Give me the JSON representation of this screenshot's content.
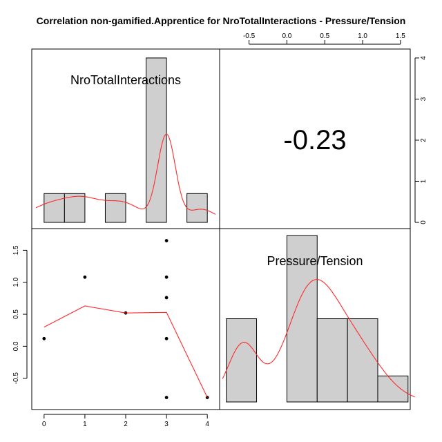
{
  "chart_data": {
    "type": "pairs",
    "title": "Correlation non-gamified.Apprentice for NroTotalInteractions - Pressure/Tension",
    "variables": [
      "NroTotalInteractions",
      "Pressure/Tension"
    ],
    "correlation": "-0.23",
    "scatter": {
      "x": [
        0,
        1,
        2,
        3,
        3,
        3,
        3,
        3,
        4
      ],
      "y": [
        0.12,
        1.08,
        0.52,
        1.65,
        1.08,
        0.76,
        0.12,
        -0.8,
        -0.8
      ],
      "smooth": [
        [
          0,
          0.3
        ],
        [
          1,
          0.63
        ],
        [
          2,
          0.52
        ],
        [
          3,
          0.53
        ],
        [
          4,
          -0.8
        ]
      ],
      "xlim": [
        -0.2,
        4.2
      ],
      "ylim": [
        -0.87,
        1.72
      ],
      "x_ticks": [
        "0",
        "1",
        "2",
        "3",
        "4"
      ],
      "y_ticks": [
        "-0.5",
        "0.0",
        "0.5",
        "1.0",
        "1.5"
      ],
      "y_tick_values": [
        -0.5,
        0.0,
        0.5,
        1.0,
        1.5
      ]
    },
    "hist_nro": {
      "bins": [
        [
          0,
          0.5
        ],
        [
          0.5,
          1
        ],
        [
          1.5,
          2
        ],
        [
          2.5,
          3
        ],
        [
          3.5,
          4
        ]
      ],
      "counts": [
        0.7,
        0.7,
        0.7,
        4,
        0.7
      ],
      "right_ticks": [
        "0",
        "1",
        "2",
        "3",
        "4"
      ],
      "right_tick_values": [
        0,
        1,
        2,
        3,
        4
      ],
      "count_lim": [
        0,
        4.15
      ]
    },
    "hist_pressure": {
      "bins": [
        [
          -0.8,
          -0.4
        ],
        [
          -0.4,
          0.0
        ],
        [
          0.0,
          0.4
        ],
        [
          0.4,
          0.8
        ],
        [
          0.8,
          1.2
        ],
        [
          1.2,
          1.6
        ]
      ],
      "heights": [
        0.8,
        0,
        1.6,
        0.8,
        0.8,
        0.25
      ],
      "xlim": [
        -0.87,
        1.72
      ],
      "top_ticks": [
        "-0.5",
        "0.0",
        "0.5",
        "1.0",
        "1.5"
      ],
      "top_tick_values": [
        -0.5,
        0.0,
        0.5,
        1.0,
        1.5
      ]
    }
  }
}
